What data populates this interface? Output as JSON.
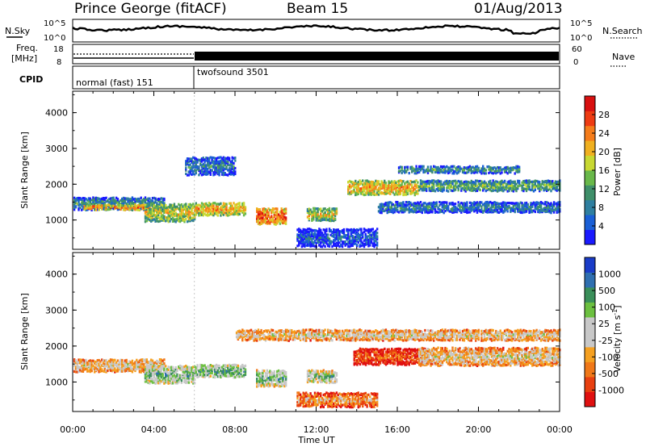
{
  "header": {
    "station": "Prince George (fitACF)",
    "beam": "Beam 15",
    "date": "01/Aug/2013"
  },
  "top_panels": {
    "nsky_label": "N.Sky",
    "nsky_ticks": [
      "10^5",
      "10^0"
    ],
    "nsearch_label": "N.Search",
    "nsearch_ticks": [
      "10^5",
      "10^0"
    ],
    "freq_label_1": "Freq.",
    "freq_label_2": "[MHz]",
    "freq_ticks": [
      "18",
      "8"
    ],
    "nave_label": "Nave",
    "nave_ticks": [
      "60",
      "0"
    ],
    "cpid_label": "CPID",
    "cpid_segments": [
      {
        "label": "normal (fast) 151",
        "start_hour": 0,
        "end_hour": 6
      },
      {
        "label": "twofsound 3501",
        "start_hour": 6,
        "end_hour": 24
      }
    ]
  },
  "chart_data": [
    {
      "type": "heatmap",
      "title": "",
      "xlabel": "Time UT",
      "ylabel": "Slant Range [km]",
      "x_range_hours": [
        0,
        24
      ],
      "x_tick_labels": [
        "00:00",
        "04:00",
        "08:00",
        "12:00",
        "16:00",
        "20:00",
        "00:00"
      ],
      "ylim": [
        180,
        4600
      ],
      "y_ticks": [
        1000,
        2000,
        3000,
        4000
      ],
      "colorbar": {
        "label": "Power [dB]",
        "ticks": [
          "4",
          "8",
          "12",
          "16",
          "20",
          "24",
          "28"
        ],
        "colors": [
          "#1a1aff",
          "#1a5fd6",
          "#2f7fa0",
          "#3f8f6a",
          "#69b84a",
          "#c8d832",
          "#f0b020",
          "#f57c1a",
          "#ee3b12",
          "#d81010"
        ]
      },
      "bands": [
        {
          "t_start": 0.0,
          "t_end": 4.5,
          "range_center": 1450,
          "range_width": 350,
          "level": 0.35
        },
        {
          "t_start": 0.5,
          "t_end": 4.0,
          "range_center": 1350,
          "range_width": 150,
          "level": 0.75
        },
        {
          "t_start": 3.5,
          "t_end": 6.0,
          "range_center": 1200,
          "range_width": 500,
          "level": 0.6
        },
        {
          "t_start": 6.0,
          "t_end": 8.5,
          "range_center": 1300,
          "range_width": 350,
          "level": 0.7
        },
        {
          "t_start": 9.0,
          "t_end": 10.5,
          "range_center": 1100,
          "range_width": 450,
          "level": 0.85
        },
        {
          "t_start": 11.5,
          "t_end": 13.0,
          "range_center": 1150,
          "range_width": 350,
          "level": 0.6
        },
        {
          "t_start": 13.5,
          "t_end": 17.0,
          "range_center": 1900,
          "range_width": 400,
          "level": 0.7
        },
        {
          "t_start": 17.0,
          "t_end": 24.0,
          "range_center": 1950,
          "range_width": 300,
          "level": 0.45
        },
        {
          "t_start": 15.0,
          "t_end": 24.0,
          "range_center": 1350,
          "range_width": 300,
          "level": 0.3
        },
        {
          "t_start": 16.0,
          "t_end": 22.0,
          "range_center": 2400,
          "range_width": 200,
          "level": 0.35
        },
        {
          "t_start": 5.5,
          "t_end": 8.0,
          "range_center": 2500,
          "range_width": 500,
          "level": 0.3
        },
        {
          "t_start": 11.0,
          "t_end": 15.0,
          "range_center": 500,
          "range_width": 500,
          "level": 0.2
        }
      ]
    },
    {
      "type": "heatmap",
      "title": "",
      "xlabel": "Time UT",
      "ylabel": "Slant Range [km]",
      "x_range_hours": [
        0,
        24
      ],
      "x_tick_labels": [
        "00:00",
        "04:00",
        "08:00",
        "12:00",
        "16:00",
        "20:00",
        "00:00"
      ],
      "ylim": [
        180,
        4600
      ],
      "y_ticks": [
        1000,
        2000,
        3000,
        4000
      ],
      "colorbar": {
        "label": "Velocity [m s^-1]",
        "ticks": [
          "1000",
          "500",
          "100",
          "25",
          "-25",
          "-100",
          "-500",
          "-1000"
        ],
        "colors": [
          "#1a3cc8",
          "#2f6fb0",
          "#3a8f5a",
          "#6cc040",
          "#c8c8c8",
          "#c8c8c8",
          "#f5a020",
          "#f07818",
          "#e84010",
          "#e01010"
        ]
      },
      "bands": [
        {
          "t_start": 0.0,
          "t_end": 4.5,
          "range_center": 1450,
          "range_width": 350,
          "level": 0.5
        },
        {
          "t_start": 3.5,
          "t_end": 6.0,
          "range_center": 1200,
          "range_width": 500,
          "level": 0.3
        },
        {
          "t_start": 6.0,
          "t_end": 8.5,
          "range_center": 1300,
          "range_width": 350,
          "level": 0.25
        },
        {
          "t_start": 9.0,
          "t_end": 10.5,
          "range_center": 1100,
          "range_width": 450,
          "level": 0.3
        },
        {
          "t_start": 11.5,
          "t_end": 13.0,
          "range_center": 1150,
          "range_width": 350,
          "level": 0.35
        },
        {
          "t_start": 13.8,
          "t_end": 17.5,
          "range_center": 1700,
          "range_width": 450,
          "level": 0.78
        },
        {
          "t_start": 17.0,
          "t_end": 24.0,
          "range_center": 1700,
          "range_width": 500,
          "level": 0.5
        },
        {
          "t_start": 8.0,
          "t_end": 24.0,
          "range_center": 2300,
          "range_width": 300,
          "level": 0.5
        },
        {
          "t_start": 11.0,
          "t_end": 15.0,
          "range_center": 500,
          "range_width": 400,
          "level": 0.65
        }
      ]
    }
  ],
  "xaxis": {
    "label": "Time UT",
    "tick_labels": [
      "00:00",
      "04:00",
      "08:00",
      "12:00",
      "16:00",
      "20:00",
      "00:00"
    ]
  }
}
